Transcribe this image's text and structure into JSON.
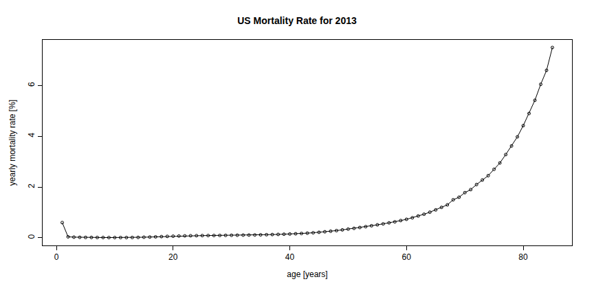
{
  "chart_data": {
    "type": "line",
    "title": "US Mortality Rate for 2013",
    "x_label": "age [years]",
    "y_label": "yearly mortality rate [%]",
    "x": [
      1,
      2,
      3,
      4,
      5,
      6,
      7,
      8,
      9,
      10,
      11,
      12,
      13,
      14,
      15,
      16,
      17,
      18,
      19,
      20,
      21,
      22,
      23,
      24,
      25,
      26,
      27,
      28,
      29,
      30,
      31,
      32,
      33,
      34,
      35,
      36,
      37,
      38,
      39,
      40,
      41,
      42,
      43,
      44,
      45,
      46,
      47,
      48,
      49,
      50,
      51,
      52,
      53,
      54,
      55,
      56,
      57,
      58,
      59,
      60,
      61,
      62,
      63,
      64,
      65,
      66,
      67,
      68,
      69,
      70,
      71,
      72,
      73,
      74,
      75,
      76,
      77,
      78,
      79,
      80,
      81,
      82,
      83,
      84,
      85
    ],
    "values": [
      0.6,
      0.04,
      0.027,
      0.02,
      0.016,
      0.015,
      0.013,
      0.012,
      0.011,
      0.01,
      0.01,
      0.01,
      0.013,
      0.017,
      0.024,
      0.031,
      0.039,
      0.048,
      0.057,
      0.064,
      0.07,
      0.077,
      0.082,
      0.085,
      0.088,
      0.09,
      0.092,
      0.094,
      0.097,
      0.1,
      0.103,
      0.107,
      0.11,
      0.114,
      0.118,
      0.123,
      0.129,
      0.135,
      0.142,
      0.15,
      0.16,
      0.171,
      0.184,
      0.2,
      0.218,
      0.238,
      0.26,
      0.285,
      0.313,
      0.343,
      0.374,
      0.406,
      0.44,
      0.475,
      0.512,
      0.55,
      0.59,
      0.63,
      0.68,
      0.73,
      0.79,
      0.86,
      0.93,
      1.01,
      1.1,
      1.2,
      1.3,
      1.5,
      1.6,
      1.78,
      1.9,
      2.1,
      2.28,
      2.45,
      2.7,
      2.95,
      3.28,
      3.62,
      3.98,
      4.42,
      4.9,
      5.42,
      6.05,
      6.6,
      7.5
    ],
    "color": "#000000",
    "marker": "circle-open",
    "line_style": "solid",
    "xlim": [
      -2.36,
      88.36
    ],
    "ylim": [
      -0.3,
      7.8
    ],
    "xticks": [
      0,
      20,
      40,
      60,
      80
    ],
    "yticks": [
      0,
      2,
      4,
      6
    ],
    "grid": false
  }
}
